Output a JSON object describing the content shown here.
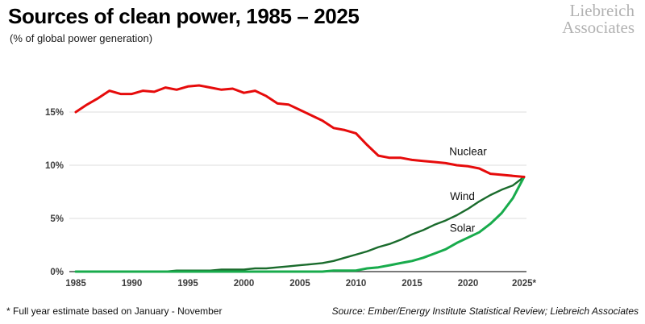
{
  "header": {
    "title": "Sources of clean power, 1985 – 2025",
    "subtitle": "(% of global power generation)"
  },
  "logo": {
    "line1": "Liebreich",
    "line2": "Associates"
  },
  "footer": {
    "note": "* Full year estimate based on January - November",
    "source": "Source: Ember/Energy Institute Statistical Review; Liebreich Associates"
  },
  "colors": {
    "nuclear": "#e60b0b",
    "wind": "#1a6b2c",
    "solar": "#18ab4c",
    "gridline": "#dedede",
    "axis": "#4d4d4d",
    "tick_text": "#3d3d3d",
    "annotation_text": "#111111"
  },
  "chart_data": {
    "type": "line",
    "title": "Sources of clean power, 1985 – 2025",
    "xlabel": "",
    "ylabel": "% of global power generation",
    "ylim": [
      0,
      18
    ],
    "grid": true,
    "legend_position": "inline-labels",
    "x": [
      1985,
      1986,
      1987,
      1988,
      1989,
      1990,
      1991,
      1992,
      1993,
      1994,
      1995,
      1996,
      1997,
      1998,
      1999,
      2000,
      2001,
      2002,
      2003,
      2004,
      2005,
      2006,
      2007,
      2008,
      2009,
      2010,
      2011,
      2012,
      2013,
      2014,
      2015,
      2016,
      2017,
      2018,
      2019,
      2020,
      2021,
      2022,
      2023,
      2024,
      2025
    ],
    "series": [
      {
        "name": "Nuclear",
        "color": "#e60b0b",
        "width": 3,
        "values": [
          15.0,
          15.7,
          16.3,
          17.0,
          16.7,
          16.7,
          17.0,
          16.9,
          17.3,
          17.1,
          17.4,
          17.5,
          17.3,
          17.1,
          17.2,
          16.8,
          17.0,
          16.5,
          15.8,
          15.7,
          15.2,
          14.7,
          14.2,
          13.5,
          13.3,
          13.0,
          11.9,
          10.9,
          10.7,
          10.7,
          10.5,
          10.4,
          10.3,
          10.2,
          10.0,
          9.9,
          9.7,
          9.2,
          9.1,
          9.0,
          8.9
        ]
      },
      {
        "name": "Wind",
        "color": "#1a6b2c",
        "width": 2.4,
        "values": [
          0.0,
          0.0,
          0.0,
          0.0,
          0.0,
          0.0,
          0.0,
          0.0,
          0.0,
          0.1,
          0.1,
          0.1,
          0.1,
          0.2,
          0.2,
          0.2,
          0.3,
          0.3,
          0.4,
          0.5,
          0.6,
          0.7,
          0.8,
          1.0,
          1.3,
          1.6,
          1.9,
          2.3,
          2.6,
          3.0,
          3.5,
          3.9,
          4.4,
          4.8,
          5.3,
          5.9,
          6.6,
          7.2,
          7.7,
          8.1,
          8.9
        ]
      },
      {
        "name": "Solar",
        "color": "#18ab4c",
        "width": 3,
        "values": [
          0.0,
          0.0,
          0.0,
          0.0,
          0.0,
          0.0,
          0.0,
          0.0,
          0.0,
          0.0,
          0.0,
          0.0,
          0.0,
          0.0,
          0.0,
          0.0,
          0.0,
          0.0,
          0.0,
          0.0,
          0.0,
          0.0,
          0.0,
          0.1,
          0.1,
          0.1,
          0.3,
          0.4,
          0.6,
          0.8,
          1.0,
          1.3,
          1.7,
          2.1,
          2.7,
          3.2,
          3.7,
          4.5,
          5.5,
          6.9,
          8.9
        ]
      }
    ],
    "y_ticks": [
      {
        "value": 0,
        "label": "0%"
      },
      {
        "value": 5,
        "label": "5%"
      },
      {
        "value": 10,
        "label": "10%"
      },
      {
        "value": 15,
        "label": "15%"
      }
    ],
    "x_ticks": [
      {
        "value": 1985,
        "label": "1985"
      },
      {
        "value": 1990,
        "label": "1990"
      },
      {
        "value": 1995,
        "label": "1995"
      },
      {
        "value": 2000,
        "label": "2000"
      },
      {
        "value": 2005,
        "label": "2005"
      },
      {
        "value": 2010,
        "label": "2010"
      },
      {
        "value": 2015,
        "label": "2015"
      },
      {
        "value": 2020,
        "label": "2020"
      },
      {
        "value": 2025,
        "label": "2025*"
      }
    ],
    "annotations": [
      {
        "text": "Nuclear",
        "year": 2020.0,
        "value": 11.3
      },
      {
        "text": "Wind",
        "year": 2019.5,
        "value": 7.1
      },
      {
        "text": "Solar",
        "year": 2019.5,
        "value": 4.1
      }
    ]
  }
}
